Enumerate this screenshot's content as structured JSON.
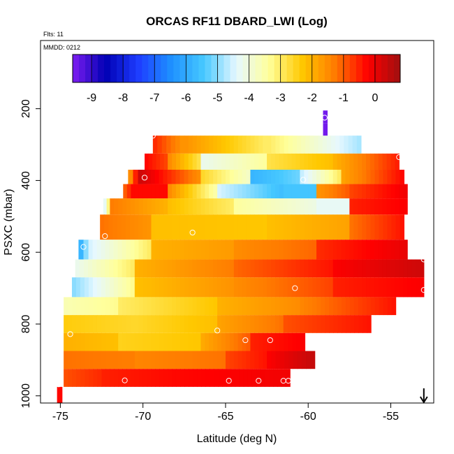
{
  "chart_data": {
    "type": "heatmap",
    "title": "ORCAS RF11 DBARD_LWI (Log)",
    "flts_label": "Flts: 11",
    "mmdd_label": "MMDD: 0212",
    "xlabel": "Latitude (deg N)",
    "ylabel": "PSXC (mbar)",
    "xlim": [
      -76.2,
      -52.4
    ],
    "ylim": [
      1020,
      10
    ],
    "x_ticks": [
      -75,
      -70,
      -65,
      -60,
      -55
    ],
    "x_tick_labels": [
      "-75",
      "-70",
      "-65",
      "-60",
      "-55"
    ],
    "y_ticks": [
      200,
      400,
      600,
      800,
      1000
    ],
    "y_tick_labels": [
      "200",
      "400",
      "600",
      "800",
      "1000"
    ],
    "colorbar": {
      "range": [
        -9.6,
        0.8
      ],
      "ticks": [
        -9,
        -8,
        -7,
        -6,
        -5,
        -4,
        -3,
        -2,
        -1,
        0
      ],
      "tick_labels": [
        "-9",
        "-8",
        "-7",
        "-6",
        "-5",
        "-4",
        "-3",
        "-2",
        "-1",
        "0"
      ],
      "colors": [
        "#7e1ef2",
        "#0000b4",
        "#1e3cff",
        "#1e90ff",
        "#46c8ff",
        "#e6f8ff",
        "#ffff9b",
        "#ffc800",
        "#ff7c00",
        "#ff0000",
        "#a01010"
      ]
    },
    "rows": [
      {
        "p_top": 275,
        "p_bot": 325,
        "segments": [
          {
            "lat0": -69.4,
            "lat1": -67.5,
            "v0": -0.6,
            "v1": -1.6
          },
          {
            "lat0": -67.5,
            "lat1": -62.5,
            "v0": -1.6,
            "v1": -3.0
          },
          {
            "lat0": -62.5,
            "lat1": -56.8,
            "v0": -3.0,
            "v1": -4.8
          }
        ]
      },
      {
        "p_top": 325,
        "p_bot": 370,
        "segments": [
          {
            "lat0": -69.9,
            "lat1": -68.5,
            "v0": -0.3,
            "v1": -0.8
          },
          {
            "lat0": -68.5,
            "lat1": -66.5,
            "v0": -1.5,
            "v1": -2.8
          },
          {
            "lat0": -66.5,
            "lat1": -62.5,
            "v0": -4.2,
            "v1": -3.4
          },
          {
            "lat0": -62.5,
            "lat1": -58.5,
            "v0": -2.8,
            "v1": -2.2
          },
          {
            "lat0": -58.5,
            "lat1": -54.5,
            "v0": -2.0,
            "v1": -0.5
          }
        ]
      },
      {
        "p_top": 370,
        "p_bot": 410,
        "segments": [
          {
            "lat0": -70.9,
            "lat1": -70.3,
            "v0": -1.5,
            "v1": -0.5
          },
          {
            "lat0": -70.3,
            "lat1": -66.5,
            "v0": 0.3,
            "v1": -1.5
          },
          {
            "lat0": -66.5,
            "lat1": -63.5,
            "v0": -2.6,
            "v1": -3.8
          },
          {
            "lat0": -63.5,
            "lat1": -60.5,
            "v0": -5.8,
            "v1": -5.2
          },
          {
            "lat0": -60.5,
            "lat1": -58.0,
            "v0": -4.6,
            "v1": -3.0
          },
          {
            "lat0": -58.0,
            "lat1": -54.2,
            "v0": -1.8,
            "v1": -0.3
          }
        ]
      },
      {
        "p_top": 410,
        "p_bot": 450,
        "segments": [
          {
            "lat0": -71.2,
            "lat1": -70.5,
            "v0": -1.0,
            "v1": -0.3
          },
          {
            "lat0": -70.5,
            "lat1": -68.5,
            "v0": -0.3,
            "v1": -0.3
          },
          {
            "lat0": -68.5,
            "lat1": -65.5,
            "v0": -1.5,
            "v1": -3.5
          },
          {
            "lat0": -65.5,
            "lat1": -61.5,
            "v0": -4.5,
            "v1": -5.6
          },
          {
            "lat0": -61.5,
            "lat1": -59.5,
            "v0": -5.5,
            "v1": -5.5
          },
          {
            "lat0": -59.5,
            "lat1": -57.5,
            "v0": -1.6,
            "v1": -1.0
          },
          {
            "lat0": -57.5,
            "lat1": -54.0,
            "v0": -0.8,
            "v1": -0.1
          }
        ]
      },
      {
        "p_top": 450,
        "p_bot": 495,
        "segments": [
          {
            "lat0": -72.4,
            "lat1": -72.0,
            "v0": -4.3,
            "v1": -3.2
          },
          {
            "lat0": -72.0,
            "lat1": -68.5,
            "v0": -1.3,
            "v1": -2.0
          },
          {
            "lat0": -68.5,
            "lat1": -64.5,
            "v0": -2.2,
            "v1": -3.0
          },
          {
            "lat0": -64.5,
            "lat1": -59.5,
            "v0": -3.4,
            "v1": -4.1
          },
          {
            "lat0": -59.5,
            "lat1": -57.5,
            "v0": -4.3,
            "v1": -4.3
          },
          {
            "lat0": -57.5,
            "lat1": -54.0,
            "v0": -0.5,
            "v1": -0.2
          }
        ]
      },
      {
        "p_top": 495,
        "p_bot": 565,
        "segments": [
          {
            "lat0": -72.6,
            "lat1": -69.5,
            "v0": -1.2,
            "v1": -1.6
          },
          {
            "lat0": -69.5,
            "lat1": -62.5,
            "v0": -2.2,
            "v1": -2.3
          },
          {
            "lat0": -62.5,
            "lat1": -57.5,
            "v0": -2.2,
            "v1": -1.8
          },
          {
            "lat0": -57.5,
            "lat1": -54.2,
            "v0": -1.2,
            "v1": -0.4
          }
        ]
      },
      {
        "p_top": 565,
        "p_bot": 620,
        "segments": [
          {
            "lat0": -73.9,
            "lat1": -73.3,
            "v0": -5.8,
            "v1": -5.0
          },
          {
            "lat0": -73.3,
            "lat1": -69.5,
            "v0": -4.5,
            "v1": -3.0
          },
          {
            "lat0": -69.5,
            "lat1": -64.5,
            "v0": -2.0,
            "v1": -1.7
          },
          {
            "lat0": -64.5,
            "lat1": -59.5,
            "v0": -1.5,
            "v1": -1.1
          },
          {
            "lat0": -59.5,
            "lat1": -54.0,
            "v0": -0.6,
            "v1": 0.0
          }
        ]
      },
      {
        "p_top": 620,
        "p_bot": 670,
        "segments": [
          {
            "lat0": -74.1,
            "lat1": -70.5,
            "v0": -4.2,
            "v1": -3.0
          },
          {
            "lat0": -70.5,
            "lat1": -64.5,
            "v0": -2.0,
            "v1": -1.3
          },
          {
            "lat0": -64.5,
            "lat1": -58.5,
            "v0": -1.1,
            "v1": -0.4
          },
          {
            "lat0": -58.5,
            "lat1": -53.0,
            "v0": -0.2,
            "v1": 0.3
          }
        ]
      },
      {
        "p_top": 670,
        "p_bot": 725,
        "segments": [
          {
            "lat0": -74.3,
            "lat1": -70.5,
            "v0": -5.0,
            "v1": -3.3
          },
          {
            "lat0": -70.5,
            "lat1": -64.5,
            "v0": -2.2,
            "v1": -1.6
          },
          {
            "lat0": -64.5,
            "lat1": -58.5,
            "v0": -1.5,
            "v1": -0.8
          },
          {
            "lat0": -58.5,
            "lat1": -53.0,
            "v0": -0.5,
            "v1": -0.2
          }
        ]
      },
      {
        "p_top": 725,
        "p_bot": 775,
        "segments": [
          {
            "lat0": -74.8,
            "lat1": -71.5,
            "v0": -3.6,
            "v1": -3.3
          },
          {
            "lat0": -71.5,
            "lat1": -65.5,
            "v0": -3.0,
            "v1": -2.3
          },
          {
            "lat0": -65.5,
            "lat1": -60.5,
            "v0": -2.0,
            "v1": -1.5
          },
          {
            "lat0": -60.5,
            "lat1": -54.7,
            "v0": -1.4,
            "v1": -0.4
          }
        ]
      },
      {
        "p_top": 775,
        "p_bot": 825,
        "segments": [
          {
            "lat0": -74.8,
            "lat1": -70.5,
            "v0": -2.4,
            "v1": -2.6
          },
          {
            "lat0": -70.5,
            "lat1": -65.5,
            "v0": -2.6,
            "v1": -2.2
          },
          {
            "lat0": -65.5,
            "lat1": -61.5,
            "v0": -1.8,
            "v1": -1.2
          },
          {
            "lat0": -61.5,
            "lat1": -56.2,
            "v0": -0.9,
            "v1": -0.4
          }
        ]
      },
      {
        "p_top": 825,
        "p_bot": 875,
        "segments": [
          {
            "lat0": -74.8,
            "lat1": -71.5,
            "v0": -2.0,
            "v1": -2.2
          },
          {
            "lat0": -71.5,
            "lat1": -66.5,
            "v0": -2.5,
            "v1": -2.3
          },
          {
            "lat0": -66.5,
            "lat1": -63.5,
            "v0": -1.9,
            "v1": -1.0
          },
          {
            "lat0": -63.5,
            "lat1": -60.2,
            "v0": -0.5,
            "v1": -0.2
          }
        ]
      },
      {
        "p_top": 875,
        "p_bot": 925,
        "segments": [
          {
            "lat0": -74.8,
            "lat1": -70.5,
            "v0": -1.2,
            "v1": -1.3
          },
          {
            "lat0": -70.5,
            "lat1": -65.0,
            "v0": -1.4,
            "v1": -1.2
          },
          {
            "lat0": -65.0,
            "lat1": -62.5,
            "v0": -0.8,
            "v1": -0.4
          },
          {
            "lat0": -62.5,
            "lat1": -59.6,
            "v0": -0.2,
            "v1": 0.4
          }
        ]
      },
      {
        "p_top": 925,
        "p_bot": 975,
        "segments": [
          {
            "lat0": -74.8,
            "lat1": -72.5,
            "v0": -0.9,
            "v1": -0.6
          },
          {
            "lat0": -72.5,
            "lat1": -68.0,
            "v0": -0.5,
            "v1": -0.3
          },
          {
            "lat0": -68.0,
            "lat1": -61.1,
            "v0": -0.3,
            "v1": -0.1
          }
        ]
      },
      {
        "p_top": 975,
        "p_bot": 1020,
        "segments": [
          {
            "lat0": -75.2,
            "lat1": -74.9,
            "v0": -0.3,
            "v1": -0.3
          }
        ]
      },
      {
        "p_top": 205,
        "p_bot": 240,
        "segments": [
          {
            "lat0": -59.1,
            "lat1": -58.85,
            "v0": -9.5,
            "v1": -9.5
          }
        ]
      },
      {
        "p_top": 240,
        "p_bot": 275,
        "segments": [
          {
            "lat0": -59.1,
            "lat1": -58.85,
            "v0": -9.5,
            "v1": -9.5
          }
        ]
      }
    ],
    "markers": [
      [
        -59.0,
        225
      ],
      [
        -69.4,
        275
      ],
      [
        -54.5,
        335
      ],
      [
        -69.9,
        392
      ],
      [
        -60.3,
        398
      ],
      [
        -67.0,
        545
      ],
      [
        -72.3,
        555
      ],
      [
        -73.6,
        585
      ],
      [
        -53.0,
        620
      ],
      [
        -60.8,
        700
      ],
      [
        -53.0,
        705
      ],
      [
        -65.5,
        818
      ],
      [
        -74.4,
        828
      ],
      [
        -63.8,
        845
      ],
      [
        -62.3,
        845
      ],
      [
        -71.1,
        957
      ],
      [
        -64.8,
        958
      ],
      [
        -63.0,
        958
      ],
      [
        -61.5,
        958
      ],
      [
        -61.2,
        958
      ],
      [
        -75.1,
        968
      ]
    ],
    "arrow_marker": {
      "lat": -53.0,
      "symbol": "down-arrow"
    }
  }
}
